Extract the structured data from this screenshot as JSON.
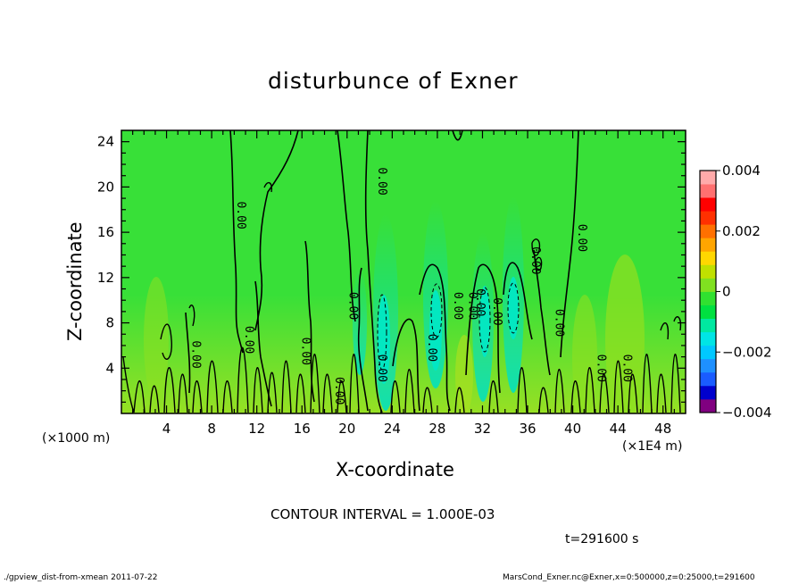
{
  "chart_data": {
    "type": "heatmap",
    "title": "disturbunce of Exner",
    "xlabel": "X-coordinate",
    "ylabel": "Z-coordinate",
    "x_unit_label": "(×1000 m)",
    "x_scale_label": "(×1E4 m)",
    "xlim": [
      0,
      50
    ],
    "ylim": [
      0,
      25
    ],
    "x_ticks": [
      "4",
      "8",
      "12",
      "16",
      "20",
      "24",
      "28",
      "32",
      "36",
      "40",
      "44",
      "48"
    ],
    "y_ticks": [
      "4",
      "8",
      "12",
      "16",
      "20",
      "24"
    ],
    "colorbar": {
      "range": [
        -0.004,
        0.004
      ],
      "tick_labels": [
        "0.004",
        "0.002",
        "0",
        "−0.002",
        "−0.004"
      ],
      "colors": [
        "#800080",
        "#0000cd",
        "#1a5cff",
        "#1e90ff",
        "#00c8ff",
        "#00e5e5",
        "#00e8a0",
        "#00e040",
        "#30e030",
        "#80e020",
        "#c0e000",
        "#ffd700",
        "#ffa500",
        "#ff7000",
        "#ff3000",
        "#ff0000",
        "#ff7070",
        "#ffaaaa"
      ]
    },
    "contour_interval_label": "CONTOUR INTERVAL = 1.000E-03",
    "contour_labels": [
      "0.00",
      "0.00",
      "0.00",
      "0.00",
      "0.00",
      "0.00",
      "0.00",
      "0.00",
      "0.00",
      "0.00",
      "0.00",
      "0.00",
      "0.00",
      "0.00",
      "0.00",
      "0.00",
      "0.00",
      "0.00"
    ],
    "contour_label_positions": [
      [
        10.3,
        17.5
      ],
      [
        22.8,
        20.5
      ],
      [
        40.5,
        15.5
      ],
      [
        6.3,
        5.2
      ],
      [
        11.0,
        6.5
      ],
      [
        16.0,
        5.5
      ],
      [
        19.0,
        2.0
      ],
      [
        20.2,
        9.5
      ],
      [
        22.8,
        4.0
      ],
      [
        27.2,
        5.8
      ],
      [
        30.8,
        9.5
      ],
      [
        33.0,
        9.0
      ],
      [
        36.4,
        13.5
      ],
      [
        38.5,
        8.0
      ],
      [
        42.2,
        4.0
      ],
      [
        44.5,
        4.0
      ],
      [
        31.5,
        9.8
      ],
      [
        29.5,
        9.5
      ]
    ],
    "time_label": "t=291600 s"
  },
  "footer": {
    "left": "./gpview_dist-from-xmean   2011-07-22",
    "right": "MarsCond_Exner.nc@Exner,x=0:500000,z=0:25000,t=291600"
  }
}
